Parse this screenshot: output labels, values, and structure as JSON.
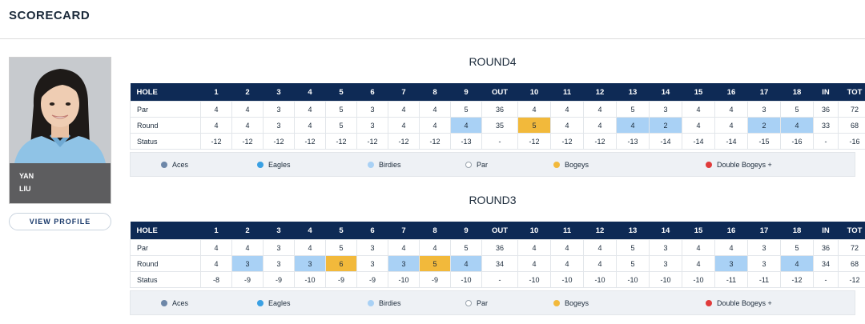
{
  "header": {
    "title": "SCORECARD"
  },
  "player": {
    "first_name": "YAN",
    "last_name": "LIU",
    "view_profile_label": "VIEW PROFILE"
  },
  "colors": {
    "header_navy": "#0e2a55",
    "birdie": "#a9d1f5",
    "bogey": "#f2b93b",
    "aces": "#6d87a8",
    "eagles": "#3aa0e3",
    "par": "#ffffff",
    "double_bogeys": "#e03b3b"
  },
  "legend": [
    {
      "label": "Aces",
      "color": "#6d87a8",
      "icon": "aces-dot-icon"
    },
    {
      "label": "Eagles",
      "color": "#3aa0e3",
      "icon": "eagles-dot-icon"
    },
    {
      "label": "Birdies",
      "color": "#a9d1f5",
      "icon": "birdies-dot-icon"
    },
    {
      "label": "Par",
      "color": "#ffffff",
      "icon": "par-dot-icon"
    },
    {
      "label": "Bogeys",
      "color": "#f2b93b",
      "icon": "bogeys-dot-icon"
    },
    {
      "label": "Double Bogeys +",
      "color": "#e03b3b",
      "icon": "double-bogeys-dot-icon"
    }
  ],
  "rounds": [
    {
      "title": "ROUND4",
      "header": [
        "HOLE",
        "1",
        "2",
        "3",
        "4",
        "5",
        "6",
        "7",
        "8",
        "9",
        "OUT",
        "10",
        "11",
        "12",
        "13",
        "14",
        "15",
        "16",
        "17",
        "18",
        "IN",
        "TOT"
      ],
      "par": [
        "Par",
        "4",
        "4",
        "3",
        "4",
        "5",
        "3",
        "4",
        "4",
        "5",
        "36",
        "4",
        "4",
        "4",
        "5",
        "3",
        "4",
        "4",
        "3",
        "5",
        "36",
        "72"
      ],
      "round": [
        "Round",
        "4",
        "4",
        "3",
        "4",
        "5",
        "3",
        "4",
        "4",
        "4",
        "35",
        "5",
        "4",
        "4",
        "4",
        "2",
        "4",
        "4",
        "2",
        "4",
        "33",
        "68"
      ],
      "status": [
        "Status",
        "-12",
        "-12",
        "-12",
        "-12",
        "-12",
        "-12",
        "-12",
        "-12",
        "-13",
        "-",
        "-12",
        "-12",
        "-12",
        "-13",
        "-14",
        "-14",
        "-14",
        "-15",
        "-16",
        "-",
        "-16"
      ],
      "round_highlight": [
        "",
        "",
        "",
        "",
        "",
        "",
        "",
        "",
        "",
        "birdie",
        "",
        "bogey",
        "",
        "",
        "birdie",
        "birdie",
        "",
        "",
        "birdie",
        "birdie",
        "",
        ""
      ]
    },
    {
      "title": "ROUND3",
      "header": [
        "HOLE",
        "1",
        "2",
        "3",
        "4",
        "5",
        "6",
        "7",
        "8",
        "9",
        "OUT",
        "10",
        "11",
        "12",
        "13",
        "14",
        "15",
        "16",
        "17",
        "18",
        "IN",
        "TOT"
      ],
      "par": [
        "Par",
        "4",
        "4",
        "3",
        "4",
        "5",
        "3",
        "4",
        "4",
        "5",
        "36",
        "4",
        "4",
        "4",
        "5",
        "3",
        "4",
        "4",
        "3",
        "5",
        "36",
        "72"
      ],
      "round": [
        "Round",
        "4",
        "3",
        "3",
        "3",
        "6",
        "3",
        "3",
        "5",
        "4",
        "34",
        "4",
        "4",
        "4",
        "5",
        "3",
        "4",
        "3",
        "3",
        "4",
        "34",
        "68"
      ],
      "status": [
        "Status",
        "-8",
        "-9",
        "-9",
        "-10",
        "-9",
        "-9",
        "-10",
        "-9",
        "-10",
        "-",
        "-10",
        "-10",
        "-10",
        "-10",
        "-10",
        "-10",
        "-11",
        "-11",
        "-12",
        "-",
        "-12"
      ],
      "round_highlight": [
        "",
        "",
        "birdie",
        "",
        "birdie",
        "bogey",
        "",
        "birdie",
        "bogey",
        "birdie",
        "",
        "",
        "",
        "",
        "",
        "",
        "",
        "birdie",
        "",
        "birdie",
        "",
        ""
      ]
    }
  ]
}
